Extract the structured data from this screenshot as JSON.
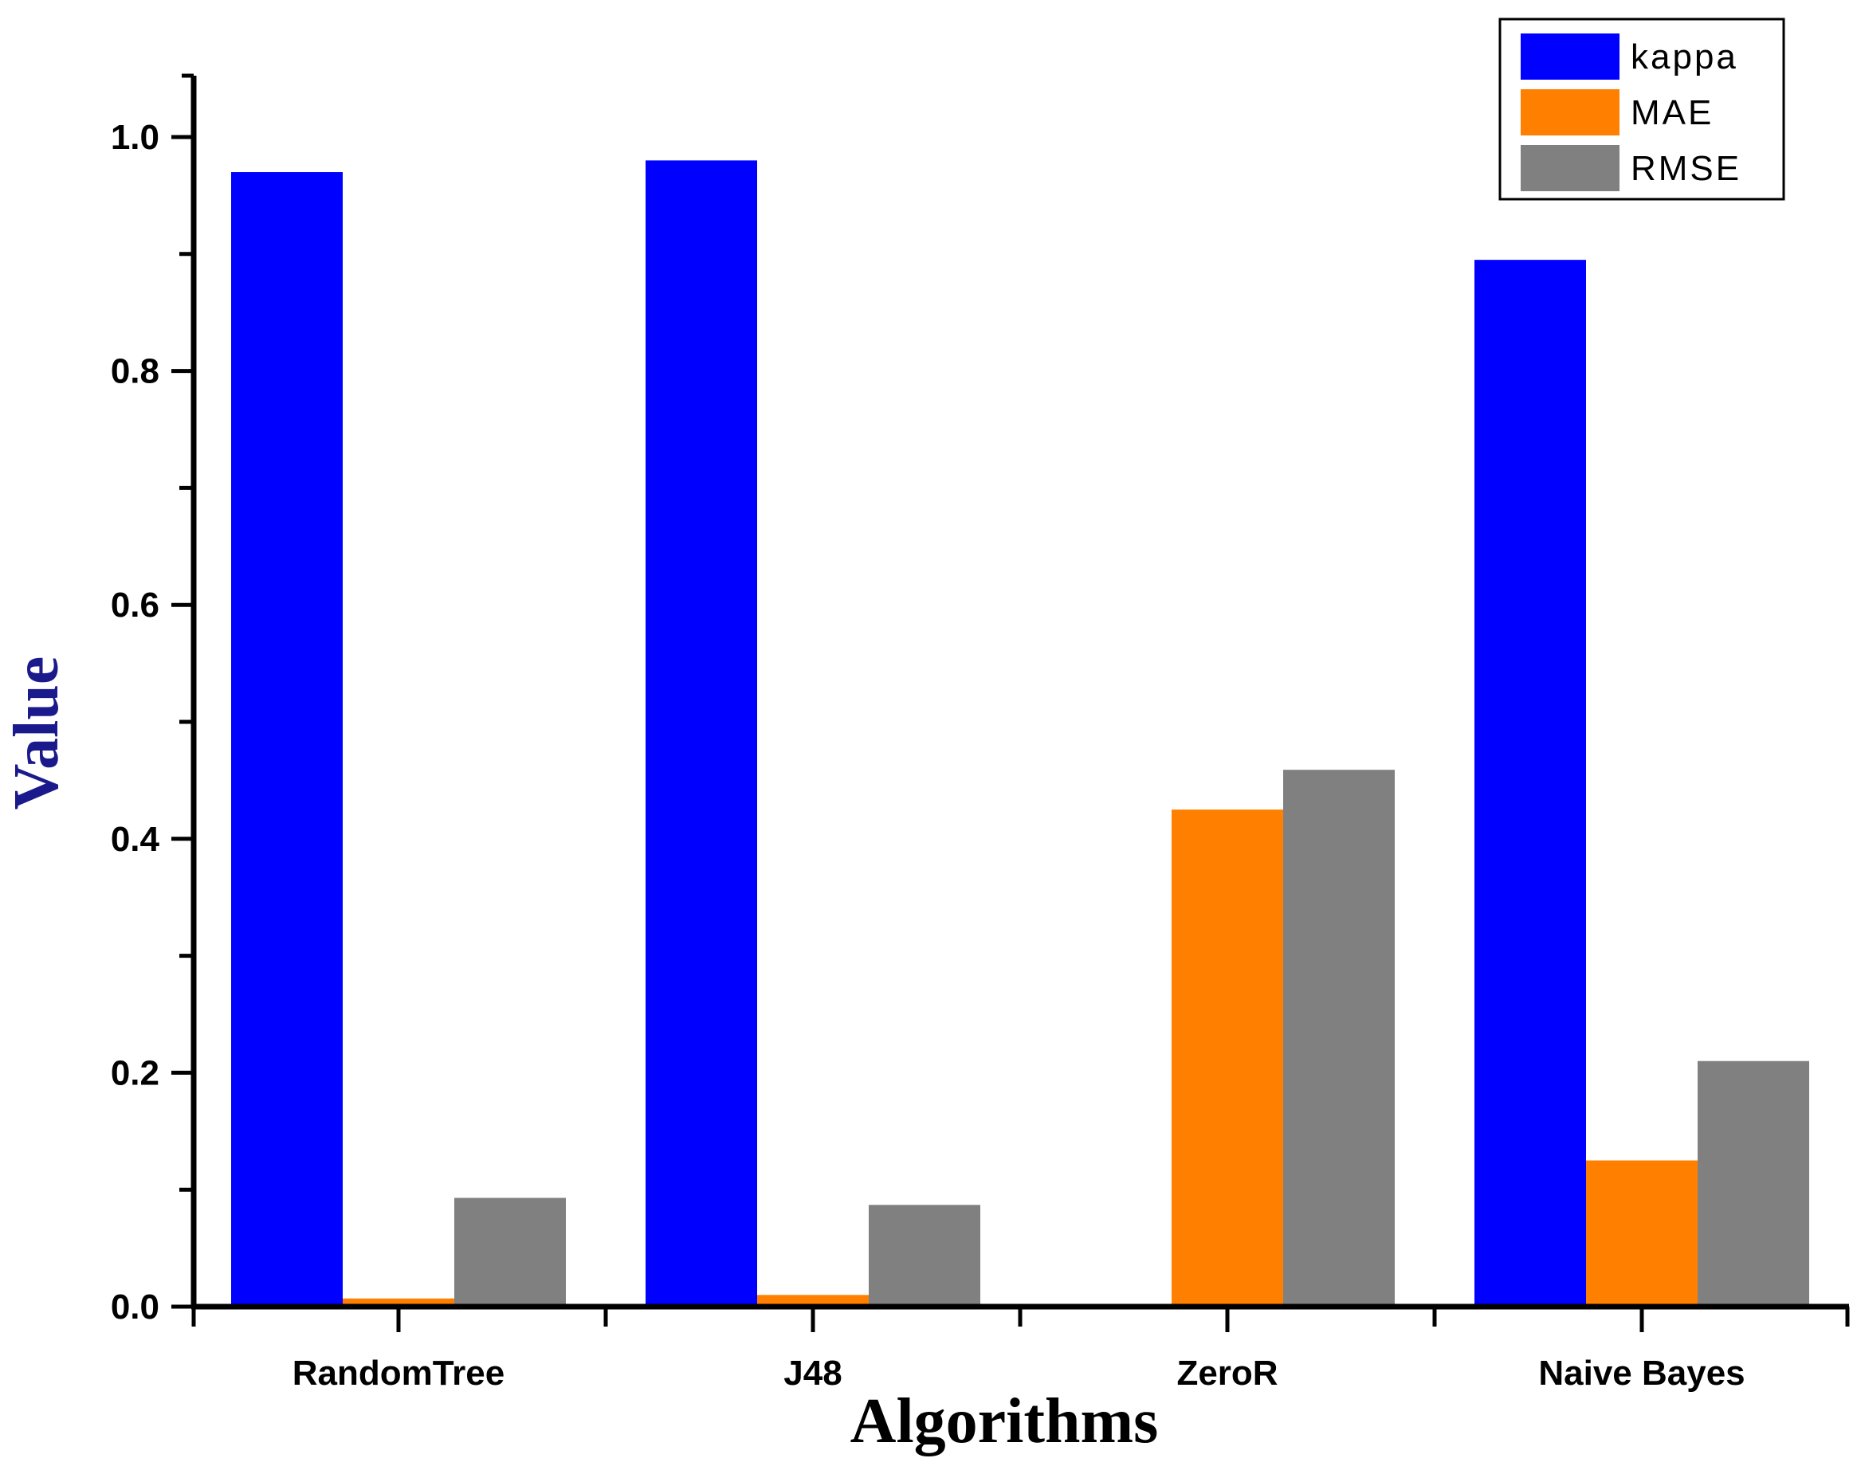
{
  "chart_data": {
    "type": "bar",
    "categories": [
      "RandomTree",
      "J48",
      "ZeroR",
      "Naive Bayes"
    ],
    "series": [
      {
        "name": "kappa",
        "color": "#0000ff",
        "values": [
          0.97,
          0.98,
          0.0,
          0.895
        ]
      },
      {
        "name": "MAE",
        "color": "#ff8000",
        "values": [
          0.007,
          0.01,
          0.425,
          0.125
        ]
      },
      {
        "name": "RMSE",
        "color": "#808080",
        "values": [
          0.093,
          0.087,
          0.459,
          0.21
        ]
      }
    ],
    "xlabel": "Algorithms",
    "ylabel": "Value",
    "xlabel_color": "#000000",
    "ylabel_color": "#1a1a8c",
    "ylim": [
      0,
      1.05
    ],
    "yticks": [
      "0.0",
      "0.2",
      "0.4",
      "0.6",
      "0.8",
      "1.0"
    ],
    "ytick_values": [
      0.0,
      0.2,
      0.4,
      0.6,
      0.8,
      1.0
    ],
    "grid": false,
    "legend_position": "top-right"
  }
}
